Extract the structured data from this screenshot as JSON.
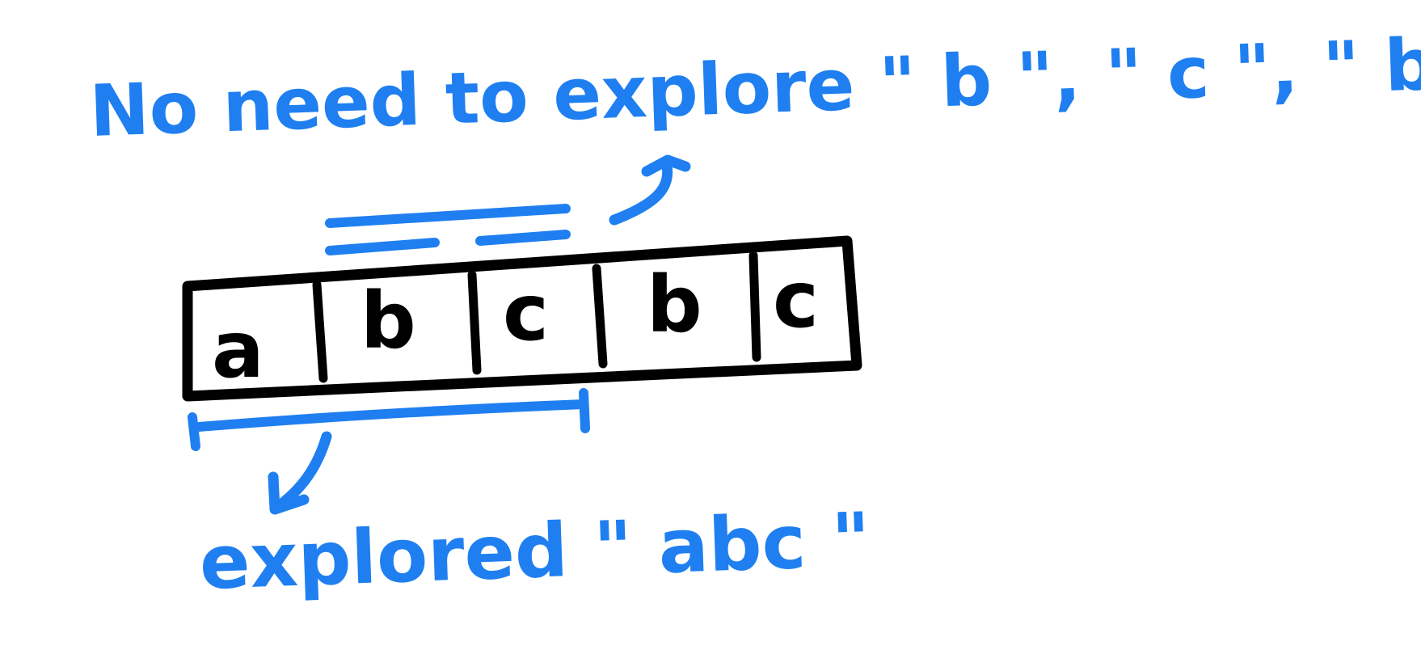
{
  "annotations": {
    "top_note": "No need to explore \" b \", \" c \", \" bc \"",
    "bottom_note": "explored \" abc \""
  },
  "cells": [
    "a",
    "b",
    "c",
    "b",
    "c"
  ],
  "colors": {
    "annotation_ink": "#1f7ff0",
    "cell_ink": "#000000",
    "background": "#ffffff"
  }
}
